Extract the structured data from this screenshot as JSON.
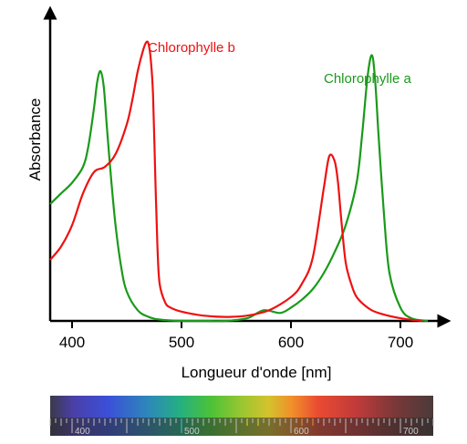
{
  "chart_data": {
    "type": "line",
    "xlabel": "Longueur d'onde [nm]",
    "ylabel": "Absorbance",
    "x_ticks": [
      400,
      500,
      600,
      700
    ],
    "xlim": [
      380,
      730
    ],
    "ylim": [
      0,
      1
    ],
    "grid": false,
    "series": [
      {
        "name": "Chlorophylle a",
        "color": "#1a9a1a",
        "x": [
          380,
          390,
          400,
          410,
          415,
          420,
          423,
          426,
          429,
          432,
          436,
          440,
          445,
          450,
          460,
          470,
          480,
          500,
          520,
          540,
          560,
          575,
          590,
          600,
          610,
          620,
          630,
          640,
          650,
          660,
          665,
          670,
          674,
          677,
          680,
          685,
          690,
          700,
          710,
          725
        ],
        "y": [
          0.44,
          0.48,
          0.52,
          0.58,
          0.66,
          0.8,
          0.9,
          0.94,
          0.88,
          0.72,
          0.52,
          0.35,
          0.2,
          0.11,
          0.04,
          0.015,
          0.005,
          0.0,
          0.0,
          0.0,
          0.01,
          0.04,
          0.03,
          0.05,
          0.08,
          0.12,
          0.18,
          0.26,
          0.36,
          0.52,
          0.7,
          0.92,
          1.0,
          0.9,
          0.7,
          0.4,
          0.18,
          0.05,
          0.01,
          0.0
        ]
      },
      {
        "name": "Chlorophylle b",
        "color": "#ee1111",
        "x": [
          380,
          390,
          400,
          410,
          420,
          430,
          440,
          450,
          455,
          460,
          465,
          468,
          470,
          472,
          474,
          476,
          478,
          480,
          485,
          490,
          500,
          520,
          540,
          560,
          580,
          600,
          610,
          620,
          630,
          635,
          640,
          643,
          646,
          650,
          655,
          660,
          670,
          680,
          700,
          720
        ],
        "y": [
          0.23,
          0.28,
          0.36,
          0.48,
          0.56,
          0.58,
          0.63,
          0.74,
          0.83,
          0.94,
          1.02,
          1.05,
          1.04,
          0.98,
          0.85,
          0.55,
          0.28,
          0.14,
          0.07,
          0.05,
          0.035,
          0.02,
          0.015,
          0.02,
          0.04,
          0.09,
          0.14,
          0.24,
          0.5,
          0.62,
          0.6,
          0.52,
          0.38,
          0.22,
          0.14,
          0.09,
          0.05,
          0.03,
          0.01,
          0.0
        ]
      }
    ],
    "spectrum_bar": {
      "tick_labels": [
        400,
        500,
        600,
        700
      ],
      "range": [
        380,
        730
      ]
    }
  }
}
